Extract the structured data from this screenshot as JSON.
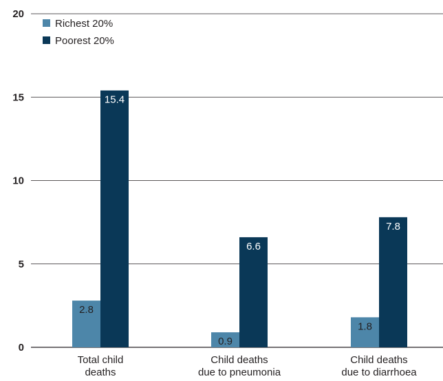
{
  "chart_data": {
    "type": "bar",
    "categories": [
      [
        "Total child",
        "deaths"
      ],
      [
        "Child deaths",
        "due to pneumonia"
      ],
      [
        "Child deaths",
        "due to diarrhoea"
      ]
    ],
    "series": [
      {
        "name": "Richest 20%",
        "values": [
          2.8,
          0.9,
          1.8
        ],
        "labels": [
          "2.8",
          "0.9",
          "1.8"
        ],
        "color": "#4d86a9"
      },
      {
        "name": "Poorest 20%",
        "values": [
          15.4,
          6.6,
          7.8
        ],
        "labels": [
          "15.4",
          "6.6",
          "7.8"
        ],
        "color": "#0a3857"
      }
    ],
    "ylim": [
      0,
      20
    ],
    "yticks": [
      0,
      5,
      10,
      15,
      20
    ],
    "ytick_labels": [
      "0",
      "5",
      "10",
      "15",
      "20"
    ],
    "grid": true,
    "legend_position": "top-left",
    "title": "",
    "xlabel": "",
    "ylabel": "",
    "colors": {
      "grid": "#231f20",
      "value_label_richest": "#231f20",
      "value_label_poorest": "#ffffff"
    }
  }
}
